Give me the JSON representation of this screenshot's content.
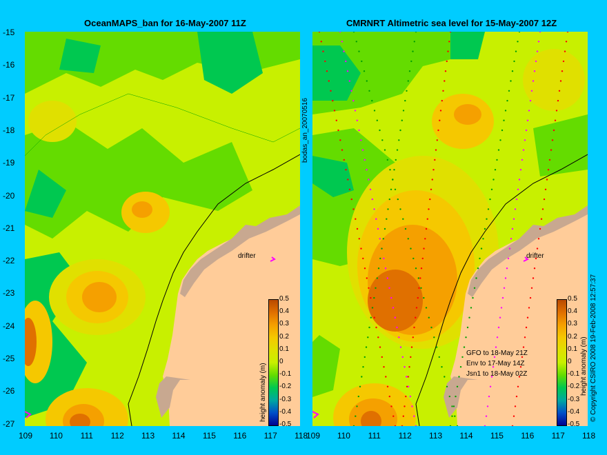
{
  "left_panel": {
    "title": "OceanMAPS_ban for 16-May-2007 11Z",
    "colorbar_label": "height anomaly (m)",
    "drifter_label": "drifter"
  },
  "right_panel": {
    "title": "CMRNRT Altimetric sea level  for 15-May-2007 12Z",
    "colorbar_label": "height anomaly (m)",
    "drifter_label": "drifter",
    "satellites": [
      "GFO to 18-May 21Z",
      "Env to 17-May 14Z",
      "Jsn1 to 18-May 02Z"
    ]
  },
  "middle_label": "bodas_an_20070516",
  "copyright": "© Copyright CSIRO 2008  19-Feb-2008 12:57:37",
  "y_ticks": [
    "-15",
    "-16",
    "-17",
    "-18",
    "-19",
    "-20",
    "-21",
    "-22",
    "-23",
    "-24",
    "-25",
    "-26",
    "-27"
  ],
  "x_ticks_left": [
    "109",
    "110",
    "111",
    "112",
    "113",
    "114",
    "115",
    "116",
    "117",
    "118"
  ],
  "x_ticks_right": [
    "109",
    "110",
    "111",
    "112",
    "113",
    "114",
    "115",
    "116",
    "117",
    "118"
  ],
  "colorbar_ticks": [
    "0.5",
    "0.4",
    "0.3",
    "0.2",
    "0.1",
    "0",
    "-0.1",
    "-0.2",
    "-0.3",
    "-0.4",
    "-0.5"
  ],
  "colorbar_colors": [
    "#b94a00",
    "#e07000",
    "#f5a000",
    "#f5c800",
    "#e0e000",
    "#c8f000",
    "#64dc00",
    "#00c850",
    "#00a8a0",
    "#0050c8",
    "#000090"
  ],
  "colors": {
    "background": "#00ccff",
    "land": "#ffcc99",
    "coast_shelf": "#c8a890"
  },
  "chart_data": {
    "type": "heatmap",
    "lon_range": [
      109,
      118
    ],
    "lat_range": [
      -27,
      -15
    ],
    "value_range": [
      -0.5,
      0.5
    ],
    "units": "m"
  }
}
